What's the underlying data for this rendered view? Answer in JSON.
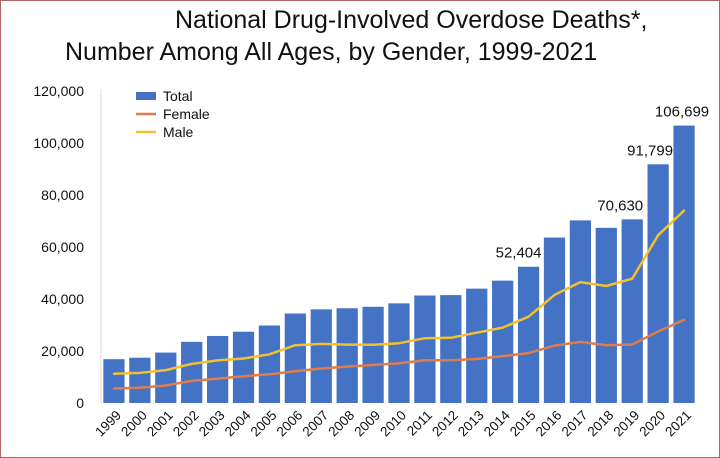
{
  "chart_data": {
    "type": "bar",
    "title_line1": "National Drug-Involved Overdose Deaths*,",
    "title_line2": "Number Among All Ages, by Gender, 1999-2021",
    "xlabel": "",
    "ylabel": "",
    "ylim": [
      0,
      120000
    ],
    "yticks": [
      0,
      20000,
      40000,
      60000,
      80000,
      100000,
      120000
    ],
    "ytick_labels": [
      "0",
      "20,000",
      "40,000",
      "60,000",
      "80,000",
      "100,000",
      "120,000"
    ],
    "grid": false,
    "legend_position": "top-left",
    "categories": [
      "1999",
      "2000",
      "2001",
      "2002",
      "2003",
      "2004",
      "2005",
      "2006",
      "2007",
      "2008",
      "2009",
      "2010",
      "2011",
      "2012",
      "2013",
      "2014",
      "2015",
      "2016",
      "2017",
      "2018",
      "2019",
      "2020",
      "2021"
    ],
    "series": [
      {
        "name": "Total",
        "kind": "bar",
        "color": "#4472c4",
        "values": [
          16849,
          17415,
          19394,
          23518,
          25785,
          27424,
          29813,
          34425,
          36010,
          36450,
          37004,
          38329,
          41340,
          41502,
          43982,
          47055,
          52404,
          63632,
          70237,
          67367,
          70630,
          91799,
          106699
        ]
      },
      {
        "name": "Female",
        "kind": "line",
        "color": "#e07b4a",
        "values": [
          5591,
          5852,
          6736,
          8490,
          9386,
          10304,
          11089,
          12212,
          13282,
          13982,
          14604,
          15323,
          16418,
          16443,
          16936,
          18036,
          19197,
          22074,
          23500,
          22200,
          22500,
          27500,
          32000
        ]
      },
      {
        "name": "Male",
        "kind": "line",
        "color": "#f2c12e",
        "values": [
          11258,
          11563,
          12658,
          15028,
          16399,
          17120,
          18724,
          22213,
          22728,
          22468,
          22400,
          23006,
          24922,
          25059,
          27046,
          29019,
          33207,
          41558,
          46500,
          45000,
          47800,
          64500,
          74000
        ]
      }
    ],
    "data_labels": [
      {
        "category": "2015",
        "text": "52,404"
      },
      {
        "category": "2019",
        "text": "70,630"
      },
      {
        "category": "2020",
        "text": "91,799"
      },
      {
        "category": "2021",
        "text": "106,699"
      }
    ]
  }
}
